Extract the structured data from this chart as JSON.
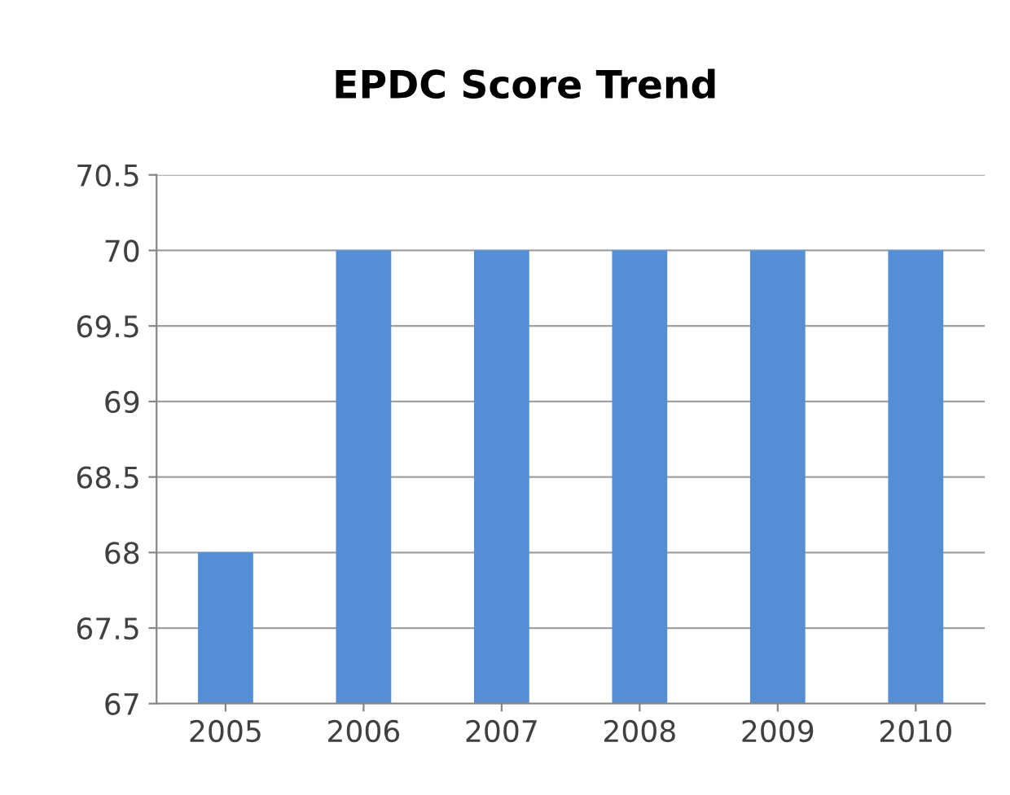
{
  "chart_data": {
    "type": "bar",
    "title": "EPDC Score Trend",
    "categories": [
      "2005",
      "2006",
      "2007",
      "2008",
      "2009",
      "2010"
    ],
    "values": [
      68,
      70,
      70,
      70,
      70,
      70
    ],
    "color": "#558ed5",
    "ylim": [
      67,
      70.5
    ],
    "yticks": [
      67,
      67.5,
      68,
      68.5,
      69,
      69.5,
      70,
      70.5
    ],
    "grid": "y"
  }
}
